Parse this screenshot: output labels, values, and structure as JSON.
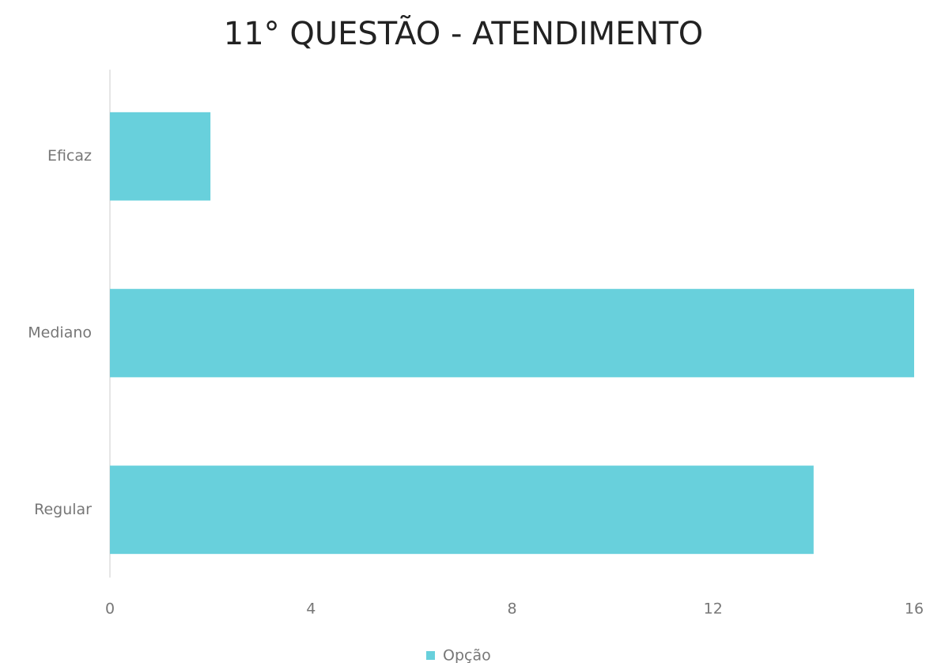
{
  "chart_data": {
    "type": "bar",
    "orientation": "horizontal",
    "title": "11° QUESTÃO - ATENDIMENTO",
    "categories": [
      "Eficaz",
      "Mediano",
      "Regular"
    ],
    "series": [
      {
        "name": "Opção",
        "color": "#68d0dc",
        "values": [
          2,
          16,
          14
        ]
      }
    ],
    "xlim": [
      0,
      16
    ],
    "xticks": [
      0,
      4,
      8,
      12,
      16
    ],
    "grid": false,
    "legend": "bottom"
  }
}
